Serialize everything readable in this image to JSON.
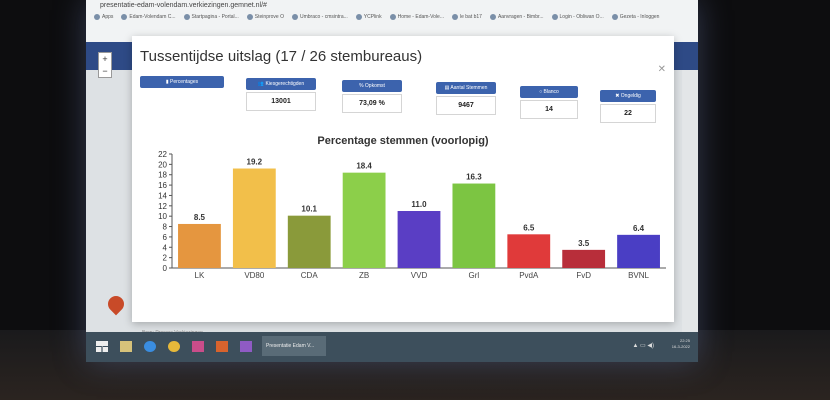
{
  "browser": {
    "url": "presentatie-edam-volendam.verkiezingen.gemnet.nl/#",
    "bookmarks": [
      "Apps",
      "Edam-Volendam C...",
      "Startpagina - Portal...",
      "Steinprove O",
      "Umbraco - cmsintra...",
      "YCPlink",
      "Home - Edam-Vole...",
      "le bat b17",
      "Aanvragen - Bimbr...",
      "Login - Obliwan O...",
      "Gezeta - Inloggen"
    ]
  },
  "app": {
    "footer_source": "Bron: Procura Verkiezingen"
  },
  "dialog": {
    "title": "Tussentijdse uitslag (17 / 26 stembureaus)",
    "stats": [
      {
        "label": "▮ Percentages"
      },
      {
        "label": "👥 Kiesgerechtigden",
        "value": "13001"
      },
      {
        "label": "% Opkomst",
        "value": "73,09 %"
      },
      {
        "label": "▤ Aantal Stemmen",
        "value": "9467"
      },
      {
        "label": "○ Blanco",
        "value": "14"
      },
      {
        "label": "✖ Ongeldig",
        "value": "22"
      }
    ]
  },
  "chart_data": {
    "type": "bar",
    "title": "Percentage stemmen (voorlopig)",
    "categories": [
      "LK",
      "VD80",
      "CDA",
      "ZB",
      "VVD",
      "Grl",
      "PvdA",
      "FvD",
      "BVNL"
    ],
    "values": [
      8.5,
      19.2,
      10.1,
      18.4,
      11.0,
      16.3,
      6.5,
      3.5,
      6.4
    ],
    "value_labels": [
      "8.5",
      "19.2",
      "10.1",
      "18.4",
      "11.0",
      "16.3",
      "6.5",
      "3.5",
      "6.4"
    ],
    "colors": [
      "#e5963f",
      "#f2bf4a",
      "#8a9a3a",
      "#8ccf4a",
      "#5a3ec4",
      "#7cc542",
      "#e03a3a",
      "#b82e3a",
      "#4a3ec4"
    ],
    "ylim": [
      0,
      22
    ],
    "yticks": [
      0,
      2,
      4,
      6,
      8,
      10,
      12,
      14,
      16,
      18,
      20,
      22
    ],
    "xlabel": "",
    "ylabel": "",
    "grid": false
  },
  "taskbar": {
    "active_window": "Presentatie Edam V...",
    "time": "22:25",
    "date": "16-3-2022"
  }
}
